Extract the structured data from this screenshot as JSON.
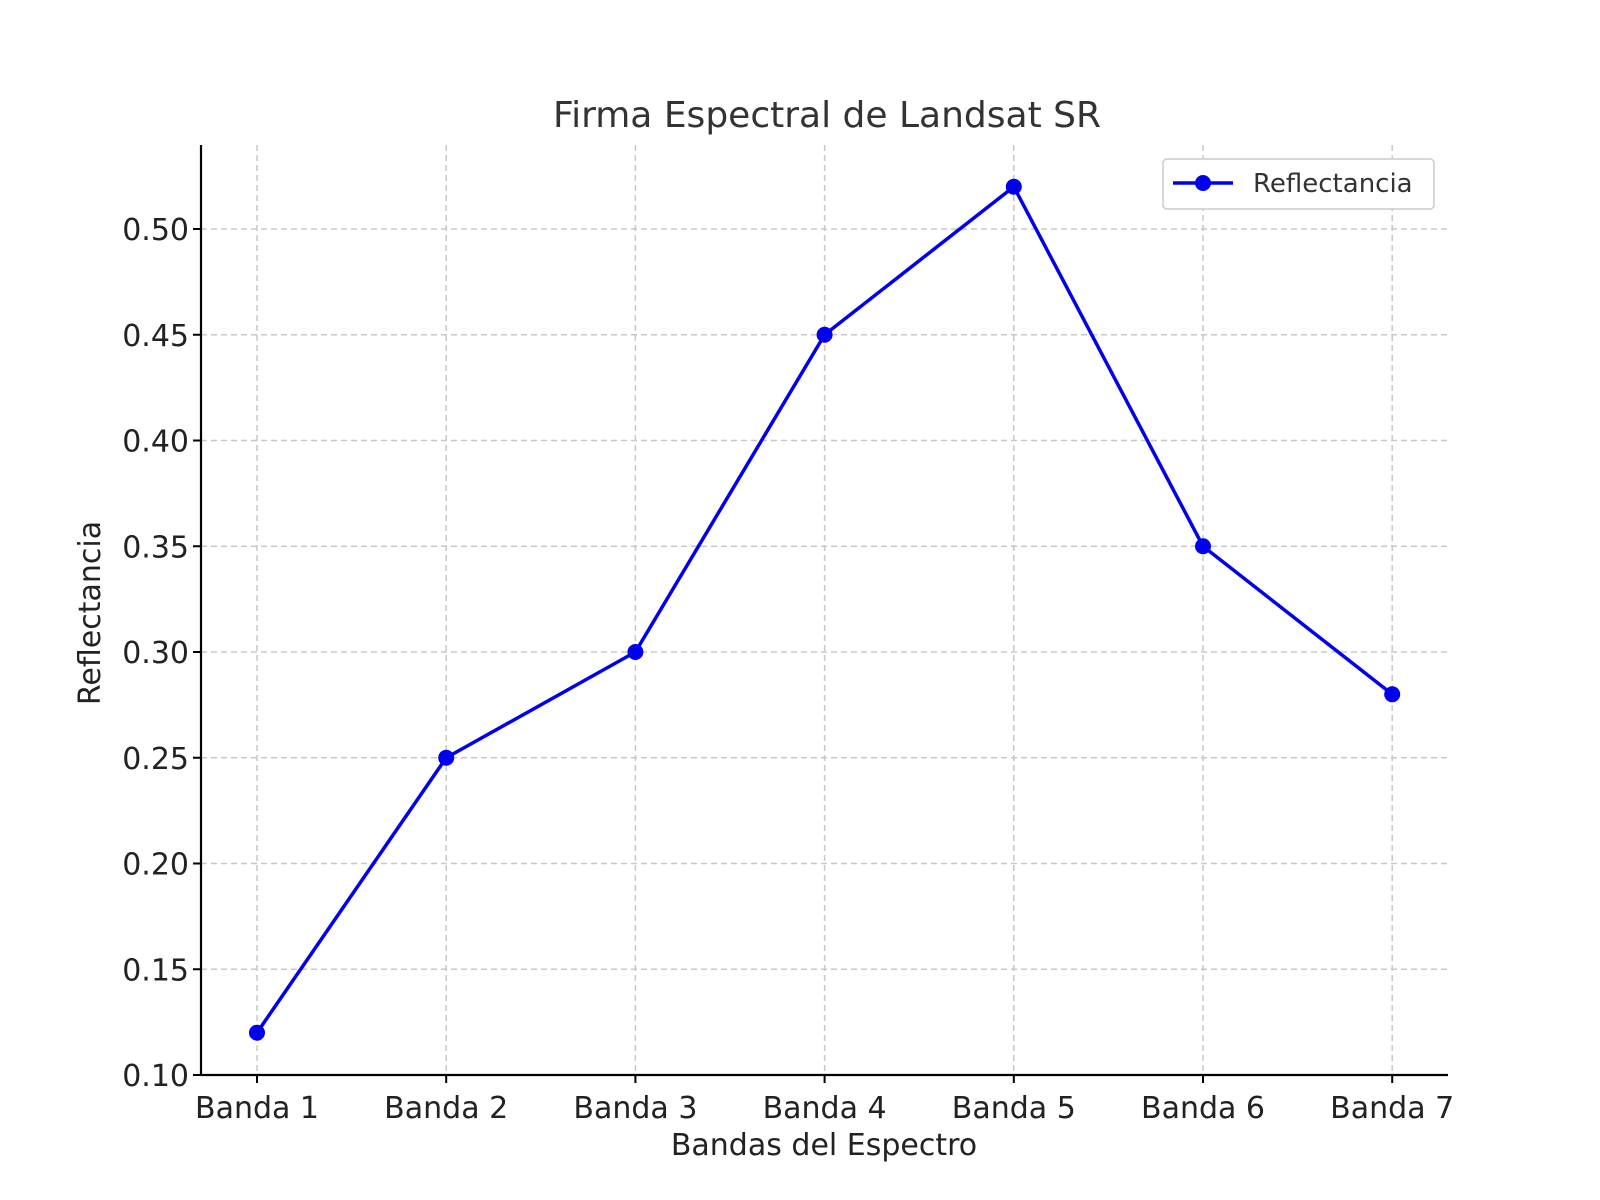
{
  "chart_data": {
    "type": "line",
    "title": "Firma Espectral de Landsat SR",
    "xlabel": "Bandas del Espectro",
    "ylabel": "Reflectancia",
    "categories": [
      "Banda 1",
      "Banda 2",
      "Banda 3",
      "Banda 4",
      "Banda 5",
      "Banda 6",
      "Banda 7"
    ],
    "series": [
      {
        "name": "Reflectancia",
        "color": "#0000ee",
        "marker": "circle",
        "values": [
          0.12,
          0.25,
          0.3,
          0.45,
          0.52,
          0.35,
          0.28
        ]
      }
    ],
    "ylim": [
      0.1,
      0.54
    ],
    "yticks": [
      "0.10",
      "0.15",
      "0.20",
      "0.25",
      "0.30",
      "0.35",
      "0.40",
      "0.45",
      "0.50"
    ],
    "grid": true,
    "grid_style": "dashed",
    "legend": "upper-right"
  }
}
